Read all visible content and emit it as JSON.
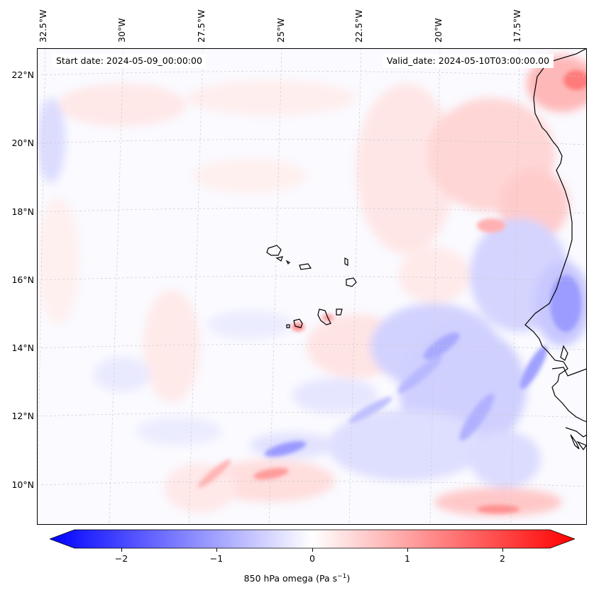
{
  "map": {
    "start_date": "Start date: 2024-05-09_00:00:00",
    "valid_date": "Valid_date: 2024-05-10T03:00:00.00",
    "lon_labels": [
      "32.5°W",
      "30°W",
      "27.5°W",
      "25°W",
      "22.5°W",
      "20°W",
      "17.5°W"
    ],
    "lat_labels": [
      "22°N",
      "20°N",
      "18°N",
      "16°N",
      "14°N",
      "12°N",
      "10°N"
    ],
    "variable": "850 hPa omega",
    "units": "Pa s",
    "units_exponent": "−1",
    "colormap": "bwr",
    "color_min": "#0000ff",
    "color_mid": "#ffffff",
    "color_max": "#ff0000",
    "value_range": [
      -2.7,
      2.7
    ],
    "gridlines": true,
    "colorbar_ticks": [
      "−2",
      "−1",
      "0",
      "1",
      "2"
    ],
    "colorbar_tick_values": [
      -2,
      -1,
      0,
      1,
      2
    ],
    "coastline_color": "#000000"
  }
}
